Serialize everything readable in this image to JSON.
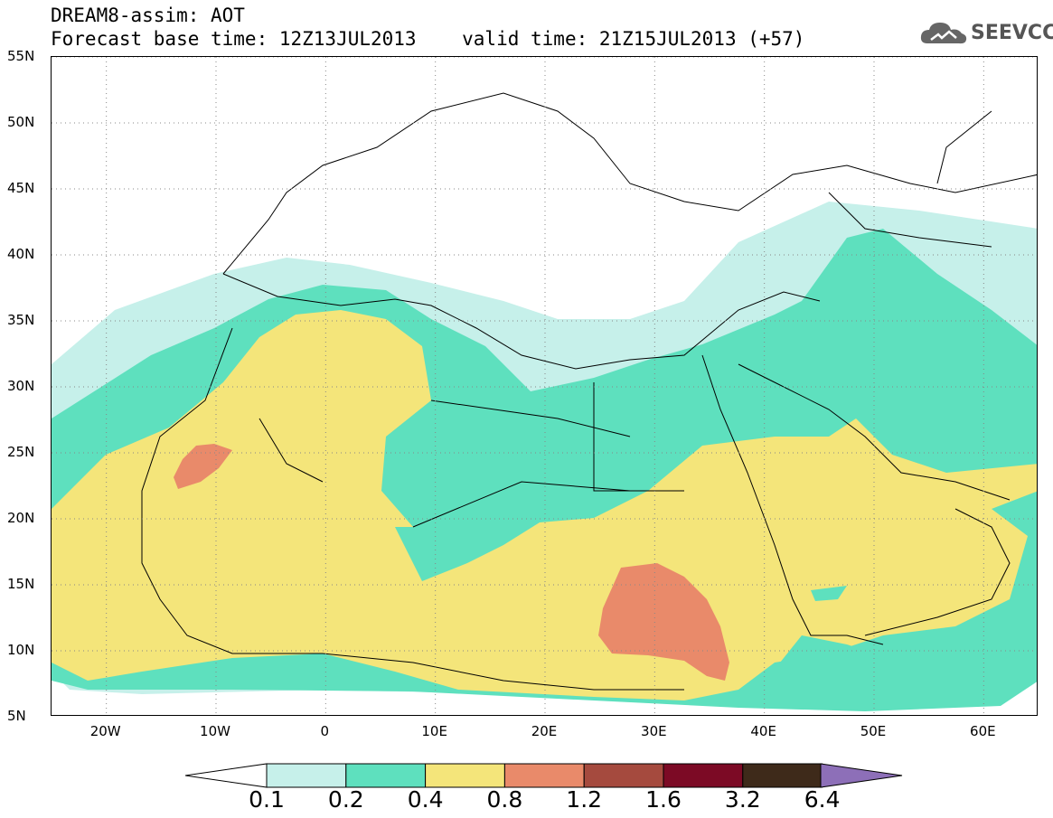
{
  "header": {
    "line1": "DREAM8-assim: AOT",
    "line2": "Forecast base time: 12Z13JUL2013    valid time: 21Z15JUL2013 (+57)"
  },
  "logo": {
    "text": "SEEVCCC",
    "icon": "cloud-icon"
  },
  "map": {
    "lat_labels": [
      "55N",
      "50N",
      "45N",
      "40N",
      "35N",
      "30N",
      "25N",
      "20N",
      "15N",
      "10N",
      "5N"
    ],
    "lon_labels": [
      "20W",
      "10W",
      "0",
      "10E",
      "20E",
      "30E",
      "40E",
      "50E",
      "60E"
    ],
    "lat_range": [
      5,
      55
    ],
    "lon_range": [
      -25,
      65
    ],
    "grid": "dotted"
  },
  "legend": {
    "thresholds": [
      "0.1",
      "0.2",
      "0.4",
      "0.8",
      "1.2",
      "1.6",
      "3.2",
      "6.4"
    ],
    "colors": [
      "#c6f0ea",
      "#5ee0be",
      "#f4e57a",
      "#e98a6a",
      "#a54a3e",
      "#7c0a25",
      "#3e2a1a",
      "#8d6fb8"
    ]
  },
  "colors": {
    "lt_01_02": "#c6f0ea",
    "lt_02_04": "#5ee0be",
    "lt_04_08": "#f4e57a",
    "lt_08_12": "#e98a6a"
  }
}
